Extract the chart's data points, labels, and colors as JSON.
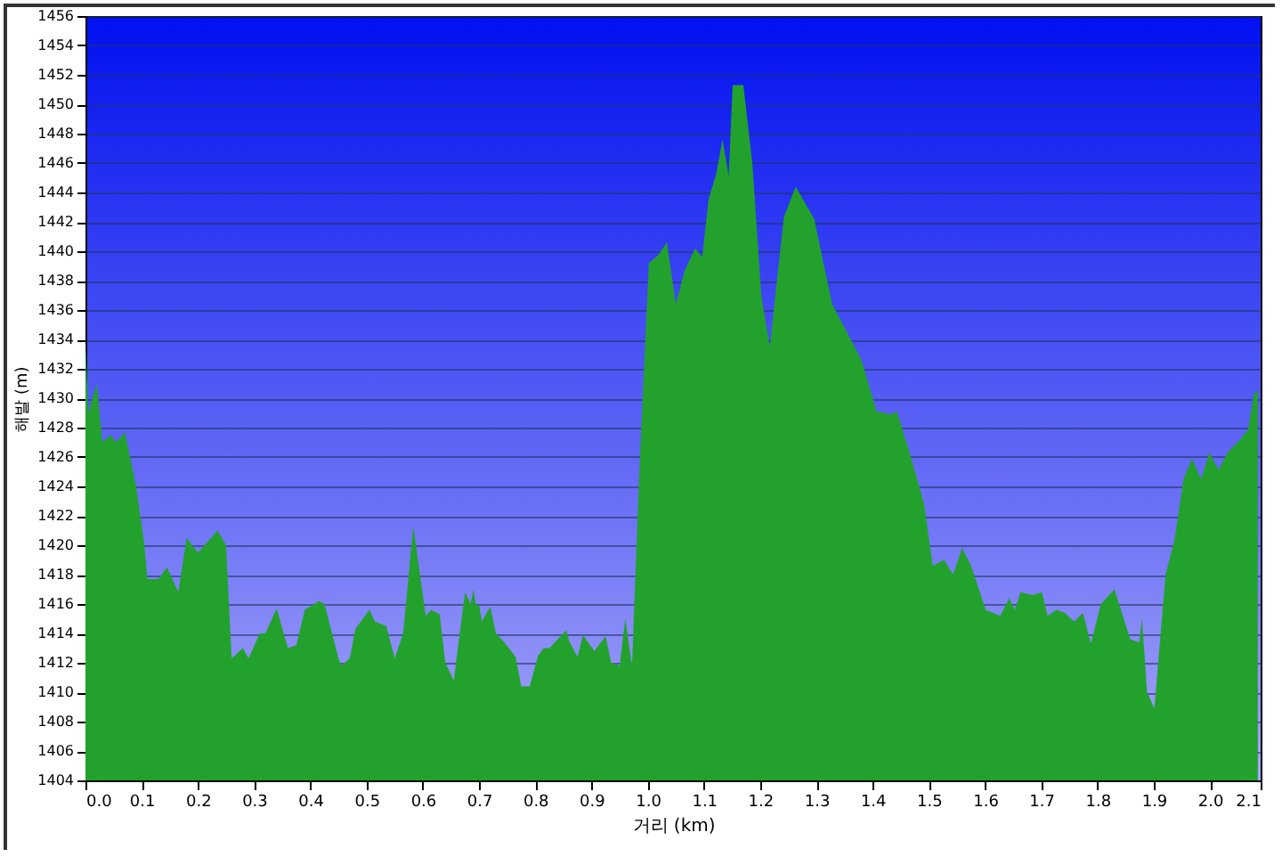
{
  "chart_data": {
    "type": "area",
    "xlabel": "거리 (km)",
    "ylabel": "해발 (m)",
    "x": [
      0,
      0.005,
      0.02,
      0.03,
      0.045,
      0.055,
      0.07,
      0.09,
      0.105,
      0.11,
      0.13,
      0.145,
      0.165,
      0.18,
      0.2,
      0.235,
      0.25,
      0.26,
      0.28,
      0.29,
      0.31,
      0.32,
      0.34,
      0.36,
      0.375,
      0.39,
      0.415,
      0.425,
      0.45,
      0.455,
      0.47,
      0.48,
      0.505,
      0.515,
      0.535,
      0.55,
      0.565,
      0.583,
      0.595,
      0.605,
      0.615,
      0.63,
      0.64,
      0.655,
      0.665,
      0.675,
      0.685,
      0.69,
      0.695,
      0.7,
      0.705,
      0.715,
      0.72,
      0.73,
      0.745,
      0.765,
      0.775,
      0.79,
      0.805,
      0.815,
      0.825,
      0.84,
      0.855,
      0.86,
      0.875,
      0.885,
      0.89,
      0.905,
      0.925,
      0.935,
      0.95,
      0.96,
      0.972,
      0.985,
      1.002,
      1.018,
      1.034,
      1.05,
      1.065,
      1.084,
      1.097,
      1.108,
      1.122,
      1.133,
      1.144,
      1.151,
      1.17,
      1.186,
      1.202,
      1.217,
      1.242,
      1.263,
      1.296,
      1.328,
      1.38,
      1.407,
      1.433,
      1.443,
      1.464,
      1.491,
      1.507,
      1.527,
      1.543,
      1.559,
      1.575,
      1.601,
      1.627,
      1.643,
      1.653,
      1.663,
      1.685,
      1.701,
      1.711,
      1.727,
      1.742,
      1.758,
      1.774,
      1.788,
      1.806,
      1.83,
      1.858,
      1.874,
      1.879,
      1.888,
      1.901,
      1.921,
      1.937,
      1.953,
      1.968,
      1.984,
      1.999,
      2.015,
      2.031,
      2.052,
      2.068,
      2.078,
      2.085
    ],
    "values": [
      1434,
      1429,
      1431,
      1427,
      1427.5,
      1427,
      1427.7,
      1424,
      1420,
      1417.7,
      1417.7,
      1418.5,
      1416.8,
      1420.5,
      1419.5,
      1421,
      1420,
      1412.3,
      1413,
      1412.3,
      1414,
      1414,
      1415.7,
      1413,
      1413.2,
      1415.6,
      1416.2,
      1416,
      1412.3,
      1411.8,
      1412.3,
      1414.3,
      1415.6,
      1414.8,
      1414.5,
      1412.3,
      1414,
      1421.3,
      1418,
      1415.2,
      1415.6,
      1415.3,
      1412,
      1410.8,
      1413.8,
      1416.8,
      1416,
      1417,
      1415.8,
      1416,
      1414.8,
      1415.5,
      1415.8,
      1414,
      1413.4,
      1412.4,
      1410.4,
      1410.4,
      1412.5,
      1413,
      1413,
      1413.6,
      1414.2,
      1413.5,
      1412.4,
      1413.9,
      1413.6,
      1412.8,
      1413.8,
      1412,
      1411.8,
      1415,
      1411.8,
      1425,
      1439.2,
      1439.7,
      1440.6,
      1436.4,
      1438.6,
      1440.2,
      1439.6,
      1443.5,
      1445.3,
      1447.6,
      1445.1,
      1451.3,
      1451.3,
      1446,
      1437,
      1433.5,
      1442.3,
      1444.4,
      1442.2,
      1436.4,
      1432.6,
      1429.1,
      1428.9,
      1429.1,
      1426.5,
      1422.9,
      1418.6,
      1419,
      1418,
      1419.8,
      1418.6,
      1415.6,
      1415.2,
      1416.4,
      1415.6,
      1416.8,
      1416.6,
      1416.8,
      1415.2,
      1415.6,
      1415.4,
      1414.8,
      1415.4,
      1413.3,
      1416,
      1417,
      1413.6,
      1413.4,
      1415,
      1410,
      1408.9,
      1418,
      1420.4,
      1424.5,
      1425.9,
      1424.5,
      1426.3,
      1425.1,
      1426.3,
      1427.1,
      1427.9,
      1430.3,
      1430.5
    ],
    "color": "#22a22c",
    "xlim": [
      0,
      2.09
    ],
    "ylim": [
      1404,
      1456
    ],
    "xticks": [
      {
        "value": 0,
        "label": "0.0"
      },
      0.1,
      0.2,
      0.3,
      0.4,
      0.5,
      0.6,
      0.7,
      0.8,
      0.9,
      {
        "value": 1,
        "label": "1.0"
      },
      1.1,
      1.2,
      1.3,
      1.4,
      1.5,
      1.6,
      1.7,
      1.8,
      1.9,
      {
        "value": 2,
        "label": "2.0"
      },
      {
        "value": 2.09,
        "label": "2.1"
      }
    ],
    "yticks": [
      1404,
      1406,
      1408,
      1410,
      1412,
      1414,
      1416,
      1418,
      1420,
      1422,
      1424,
      1426,
      1428,
      1430,
      1432,
      1434,
      1436,
      1438,
      1440,
      1442,
      1444,
      1446,
      1448,
      1450,
      1452,
      1454,
      1456
    ],
    "grid": "y"
  }
}
